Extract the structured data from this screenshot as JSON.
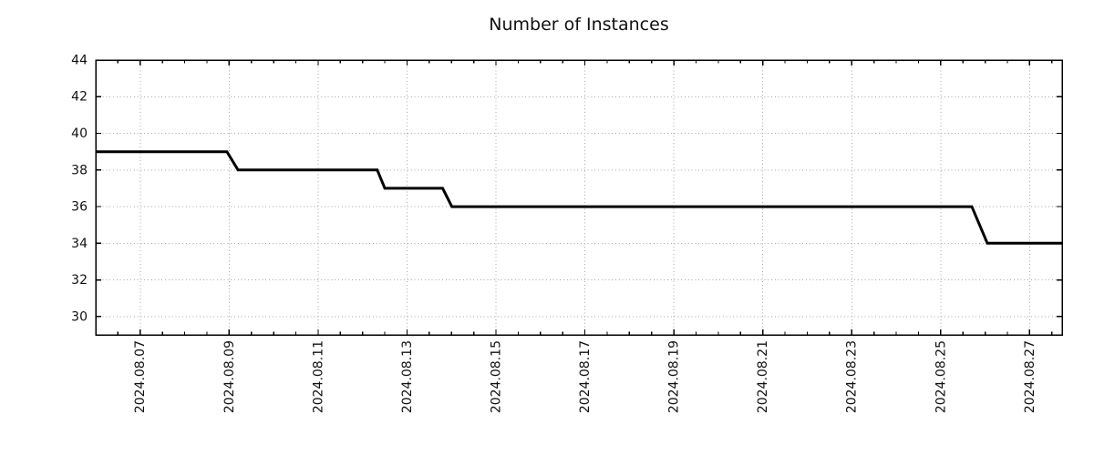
{
  "title": "Number of Instances",
  "chart_data": {
    "type": "line",
    "style": "step",
    "title": "Number of Instances",
    "legend": "none",
    "grid": true,
    "background_color": "#ffffff",
    "colors": {
      "line": "#000000",
      "axis": "#000000",
      "grid": "#a8a8a8",
      "text": "#111111"
    },
    "x_axis": {
      "label": "",
      "epoch": "2024.08.07",
      "range_days": [
        -1.0,
        20.73
      ],
      "major_tick_days": [
        0,
        2,
        4,
        6,
        8,
        10,
        12,
        14,
        16,
        18,
        20
      ],
      "tick_labels": [
        "2024.08.07",
        "2024.08.09",
        "2024.08.11",
        "2024.08.13",
        "2024.08.15",
        "2024.08.17",
        "2024.08.19",
        "2024.08.21",
        "2024.08.23",
        "2024.08.25",
        "2024.08.27"
      ],
      "minor_tick_interval_days": 0.5,
      "label_rotation_deg": -90
    },
    "y_axis": {
      "label": "",
      "range": [
        29,
        44
      ],
      "major_ticks": [
        30,
        32,
        34,
        36,
        38,
        40,
        42,
        44
      ],
      "tick_labels": [
        "30",
        "32",
        "34",
        "36",
        "38",
        "40",
        "42",
        "44"
      ],
      "minor_ticks": "none"
    },
    "series": [
      {
        "name": "instances",
        "color": "#000000",
        "width": 3,
        "points_day_value": [
          [
            -1.0,
            39
          ],
          [
            1.95,
            39
          ],
          [
            2.2,
            38
          ],
          [
            5.33,
            38
          ],
          [
            5.5,
            37
          ],
          [
            6.8,
            37
          ],
          [
            7.01,
            36
          ],
          [
            18.7,
            36
          ],
          [
            19.05,
            34
          ],
          [
            20.73,
            34
          ]
        ]
      }
    ],
    "annotations": []
  }
}
